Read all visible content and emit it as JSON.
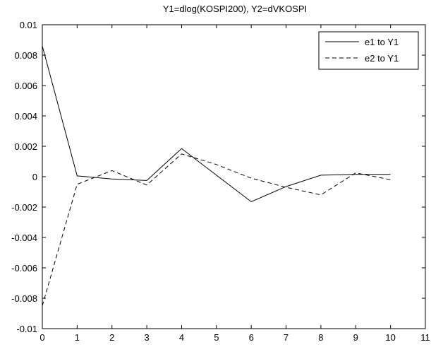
{
  "chart_data": {
    "type": "line",
    "title": "Y1=dlog(KOSPI200), Y2=dVKOSPI",
    "xlabel": "",
    "ylabel": "",
    "xlim": [
      0,
      11
    ],
    "ylim": [
      -0.01,
      0.01
    ],
    "x_ticks": [
      0,
      1,
      2,
      3,
      4,
      5,
      6,
      7,
      8,
      9,
      10,
      11
    ],
    "y_ticks": [
      -0.01,
      -0.008,
      -0.006,
      -0.004,
      -0.002,
      0,
      0.002,
      0.004,
      0.006,
      0.008,
      0.01
    ],
    "x_tick_labels": [
      "0",
      "1",
      "2",
      "3",
      "4",
      "5",
      "6",
      "7",
      "8",
      "9",
      "10",
      "11"
    ],
    "y_tick_labels": [
      "-0.01",
      "-0.008",
      "-0.006",
      "-0.004",
      "-0.002",
      "0",
      "0.002",
      "0.004",
      "0.006",
      "0.008",
      "0.01"
    ],
    "grid": false,
    "legend_position": "top-right",
    "x": [
      0,
      1,
      2,
      3,
      4,
      5,
      6,
      7,
      8,
      9,
      10
    ],
    "series": [
      {
        "name": "e1 to Y1",
        "style": "solid",
        "color": "#000000",
        "values": [
          0.0086,
          5e-05,
          -0.00015,
          -0.00025,
          0.00185,
          0.0001,
          -0.00165,
          -0.00065,
          0.0001,
          0.00015,
          0.00015
        ]
      },
      {
        "name": "e2 to Y1",
        "style": "dashed",
        "color": "#000000",
        "values": [
          -0.0085,
          -0.0005,
          0.0004,
          -0.00055,
          0.0015,
          0.0008,
          -0.0001,
          -0.0007,
          -0.0012,
          0.00025,
          -0.0002
        ]
      }
    ]
  }
}
